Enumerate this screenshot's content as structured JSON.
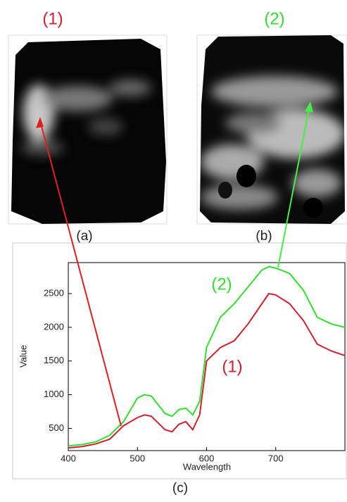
{
  "figure": {
    "panel_labels": [
      "(a)",
      "(b)"
    ],
    "chart_label": "(c)"
  },
  "chart_data": {
    "type": "line",
    "x_label": "Wavelength",
    "y_label": "Value",
    "x": [
      400,
      420,
      440,
      460,
      480,
      500,
      510,
      520,
      540,
      550,
      560,
      570,
      580,
      590,
      600,
      620,
      640,
      660,
      680,
      690,
      700,
      720,
      740,
      760,
      780,
      800
    ],
    "series": [
      {
        "name": "(1)",
        "color": "#d02030",
        "values": [
          210,
          230,
          270,
          340,
          540,
          660,
          700,
          680,
          480,
          450,
          560,
          600,
          480,
          700,
          1500,
          1700,
          1800,
          2050,
          2350,
          2500,
          2480,
          2350,
          2100,
          1750,
          1650,
          1580
        ]
      },
      {
        "name": "(2)",
        "color": "#33dd33",
        "values": [
          240,
          260,
          300,
          400,
          600,
          950,
          1000,
          980,
          720,
          680,
          780,
          800,
          700,
          900,
          1700,
          2150,
          2350,
          2600,
          2850,
          2900,
          2880,
          2800,
          2550,
          2150,
          2050,
          2000
        ]
      }
    ],
    "xlim": [
      400,
      800
    ],
    "xticks": [
      400,
      500,
      600,
      700
    ],
    "ylim": [
      170,
      2960
    ],
    "yticks": [
      500,
      1000,
      1500,
      2000,
      2500
    ]
  }
}
